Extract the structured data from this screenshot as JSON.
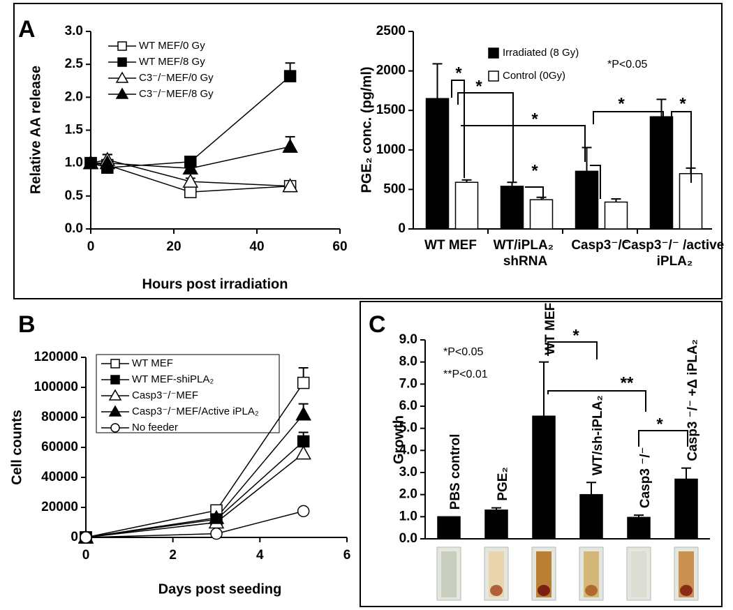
{
  "panel_labels": [
    "A",
    "B",
    "C"
  ],
  "chart_data": [
    {
      "type": "line",
      "ylabel": "Relative AA release",
      "xlabel": "Hours post irradiation",
      "x": [
        0,
        4,
        24,
        48
      ],
      "series": [
        {
          "name": "WT MEF/0 Gy",
          "marker": "square",
          "filled": false,
          "color": "#000000",
          "values": [
            1.0,
            0.97,
            0.56,
            0.65
          ],
          "errors": [
            0.05,
            0.05,
            0.05,
            0.05
          ]
        },
        {
          "name": "WT MEF/8 Gy",
          "marker": "square",
          "filled": true,
          "color": "#000000",
          "values": [
            1.0,
            0.93,
            1.02,
            2.32
          ],
          "errors": [
            0.08,
            0.05,
            0.05,
            0.2
          ]
        },
        {
          "name": "C3⁻/⁻MEF/0 Gy",
          "marker": "triangle",
          "filled": false,
          "color": "#000000",
          "values": [
            1.0,
            1.05,
            0.72,
            0.65
          ],
          "errors": [
            0.05,
            0.08,
            0.05,
            0.05
          ]
        },
        {
          "name": "C3⁻/⁻MEF/8 Gy",
          "marker": "triangle",
          "filled": true,
          "color": "#000000",
          "values": [
            1.0,
            1.0,
            0.92,
            1.25
          ],
          "errors": [
            0.05,
            0.13,
            0.05,
            0.15
          ]
        }
      ],
      "xlim": [
        0,
        60
      ],
      "xticks": [
        0,
        20,
        40,
        60
      ],
      "ylim": [
        0,
        3
      ],
      "yticks": [
        {
          "value": 0,
          "label": "0.0"
        },
        {
          "value": 0.5,
          "label": "0.5"
        },
        {
          "value": 1,
          "label": "1.0"
        },
        {
          "value": 1.5,
          "label": "1.5"
        },
        {
          "value": 2,
          "label": "2.0"
        },
        {
          "value": 2.5,
          "label": "2.5"
        },
        {
          "value": 3,
          "label": "3.0"
        }
      ],
      "legend": "upper left",
      "legend_frame": false
    },
    {
      "type": "bar",
      "ylabel": "PGE₂ conc. (pg/ml)",
      "categories": [
        "WT MEF",
        "WT/iPLA₂ shRNA",
        "Casp3⁻/⁻",
        "Casp3⁻/⁻ /active iPLA₂"
      ],
      "series": [
        {
          "name": "Irradiated (8 Gy)",
          "color": "#000000",
          "values": [
            1650,
            540,
            730,
            1420
          ],
          "errors": [
            440,
            50,
            300,
            220
          ]
        },
        {
          "name": "Control (0Gy)",
          "color": "#ffffff",
          "values": [
            590,
            370,
            340,
            700
          ],
          "errors": [
            30,
            30,
            40,
            70
          ]
        }
      ],
      "ylim": [
        0,
        2500
      ],
      "yticks": [
        0,
        500,
        1000,
        1500,
        2000,
        2500
      ],
      "category_label_position": "below_axis",
      "annotations": [
        "*P<0.05"
      ],
      "significance": [
        "*",
        "*",
        "*",
        "*",
        "*",
        "*"
      ],
      "legend": "upper center",
      "legend_frame": false
    },
    {
      "type": "line",
      "ylabel": "Cell counts",
      "xlabel": "Days post seeding",
      "x": [
        0,
        3,
        5
      ],
      "series": [
        {
          "name": "WT MEF",
          "marker": "square",
          "filled": false,
          "color": "#000000",
          "values": [
            0,
            18000,
            103000
          ],
          "errors": [
            0,
            0,
            10000
          ]
        },
        {
          "name": "WT MEF-shiPLA₂",
          "marker": "square",
          "filled": true,
          "color": "#000000",
          "values": [
            0,
            12000,
            64000
          ],
          "errors": [
            0,
            0,
            6000
          ]
        },
        {
          "name": "Casp3⁻/⁻MEF",
          "marker": "triangle",
          "filled": false,
          "color": "#000000",
          "values": [
            0,
            10000,
            56000
          ],
          "errors": [
            0,
            0,
            5000
          ]
        },
        {
          "name": "Casp3⁻/⁻MEF/Active iPLA₂",
          "marker": "triangle",
          "filled": true,
          "color": "#000000",
          "values": [
            0,
            13000,
            82000
          ],
          "errors": [
            0,
            0,
            7000
          ]
        },
        {
          "name": "No feeder",
          "marker": "circle",
          "filled": false,
          "color": "#000000",
          "values": [
            0,
            2500,
            17500
          ],
          "errors": [
            0,
            0,
            0
          ]
        }
      ],
      "xlim": [
        0,
        6
      ],
      "xticks": [
        0,
        2,
        4,
        6
      ],
      "ylim": [
        0,
        120000
      ],
      "yticks": [
        0,
        20000,
        40000,
        60000,
        80000,
        100000,
        120000
      ],
      "legend": "upper left",
      "legend_frame": true
    },
    {
      "type": "bar",
      "ylabel": "Growth",
      "categories": [
        "PBS control",
        "PGE₂",
        "WT MEF",
        "WT/sh-iPLA₂",
        "Casp3 ⁻/⁻",
        "Casp3 ⁻/⁻ +Δ iPLA₂"
      ],
      "values": [
        1.0,
        1.3,
        5.55,
        2.0,
        0.97,
        2.7
      ],
      "errors": [
        0.0,
        0.1,
        2.45,
        0.55,
        0.1,
        0.5
      ],
      "color": "#000000",
      "ylim": [
        0,
        9
      ],
      "yticks": [
        {
          "value": 0,
          "label": "0.0"
        },
        {
          "value": 1,
          "label": "1.0"
        },
        {
          "value": 2,
          "label": "2.0"
        },
        {
          "value": 3,
          "label": "3.0"
        },
        {
          "value": 4,
          "label": "4.0"
        },
        {
          "value": 5,
          "label": "5.0"
        },
        {
          "value": 6,
          "label": "6.0"
        },
        {
          "value": 7,
          "label": "7.0"
        },
        {
          "value": 8,
          "label": "8.0"
        },
        {
          "value": 9,
          "label": "9.0"
        }
      ],
      "category_label_position": "above_bar",
      "annotations": [
        "*P<0.05",
        "**P<0.01"
      ],
      "significance": [
        "*",
        "**",
        "*"
      ]
    }
  ]
}
